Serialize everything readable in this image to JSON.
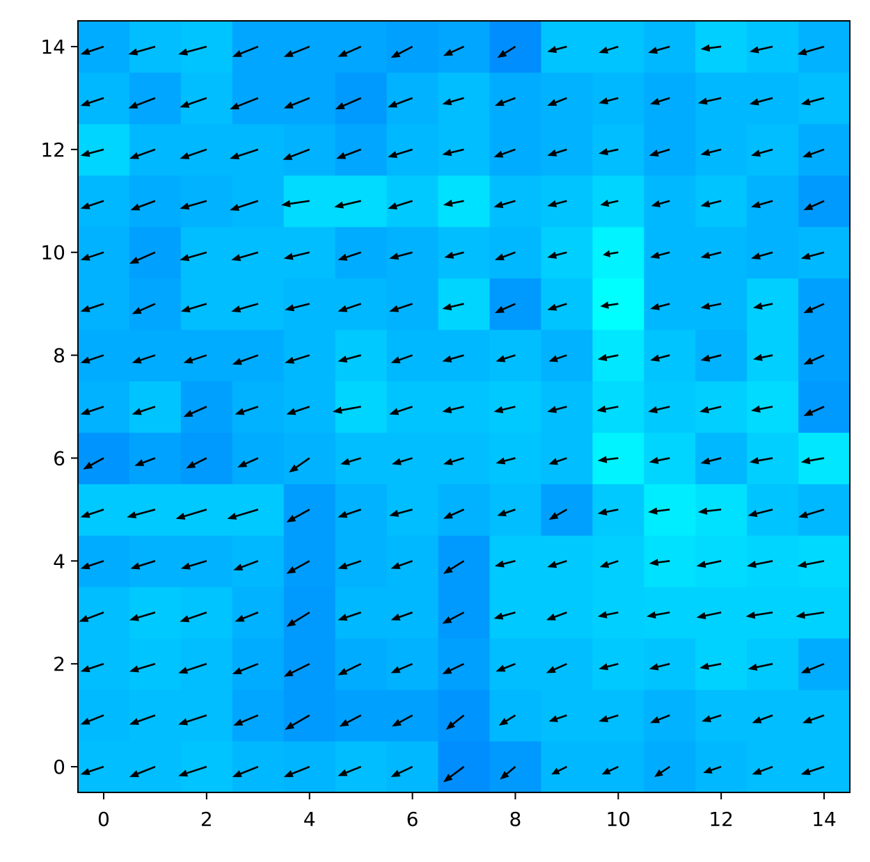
{
  "chart_data": {
    "type": "heatmap",
    "title": "",
    "xlabel": "",
    "ylabel": "",
    "xlim": [
      -0.5,
      14.5
    ],
    "ylim": [
      -0.5,
      14.5
    ],
    "grid": false,
    "origin": "lower",
    "colormap": {
      "low": "#0088ff",
      "high": "#00ffff"
    },
    "x_ticks": [
      {
        "value": 0,
        "label": "0"
      },
      {
        "value": 2,
        "label": "2"
      },
      {
        "value": 4,
        "label": "4"
      },
      {
        "value": 6,
        "label": "6"
      },
      {
        "value": 8,
        "label": "8"
      },
      {
        "value": 10,
        "label": "10"
      },
      {
        "value": 12,
        "label": "12"
      },
      {
        "value": 14,
        "label": "14"
      }
    ],
    "y_ticks": [
      {
        "value": 0,
        "label": "0"
      },
      {
        "value": 2,
        "label": "2"
      },
      {
        "value": 4,
        "label": "4"
      },
      {
        "value": 6,
        "label": "6"
      },
      {
        "value": 8,
        "label": "8"
      },
      {
        "value": 10,
        "label": "10"
      },
      {
        "value": 12,
        "label": "12"
      },
      {
        "value": 14,
        "label": "14"
      }
    ],
    "heatmap_rows_bottom_to_top": [
      [
        0.45,
        0.45,
        0.5,
        0.4,
        0.38,
        0.45,
        0.4,
        0.05,
        0.15,
        0.4,
        0.4,
        0.3,
        0.4,
        0.45,
        0.45
      ],
      [
        0.42,
        0.45,
        0.45,
        0.25,
        0.15,
        0.2,
        0.2,
        0.1,
        0.4,
        0.45,
        0.45,
        0.35,
        0.45,
        0.45,
        0.45
      ],
      [
        0.45,
        0.5,
        0.45,
        0.3,
        0.15,
        0.3,
        0.35,
        0.2,
        0.45,
        0.45,
        0.55,
        0.5,
        0.62,
        0.55,
        0.3
      ],
      [
        0.45,
        0.55,
        0.5,
        0.35,
        0.15,
        0.4,
        0.4,
        0.15,
        0.55,
        0.55,
        0.6,
        0.62,
        0.62,
        0.62,
        0.62
      ],
      [
        0.3,
        0.35,
        0.35,
        0.4,
        0.18,
        0.35,
        0.4,
        0.15,
        0.55,
        0.55,
        0.6,
        0.75,
        0.7,
        0.65,
        0.68
      ],
      [
        0.55,
        0.55,
        0.55,
        0.55,
        0.18,
        0.35,
        0.45,
        0.35,
        0.45,
        0.2,
        0.55,
        0.85,
        0.75,
        0.5,
        0.4
      ],
      [
        0.1,
        0.22,
        0.15,
        0.3,
        0.35,
        0.45,
        0.45,
        0.45,
        0.5,
        0.45,
        0.9,
        0.65,
        0.4,
        0.6,
        0.8
      ],
      [
        0.35,
        0.5,
        0.2,
        0.35,
        0.4,
        0.65,
        0.5,
        0.5,
        0.55,
        0.45,
        0.7,
        0.55,
        0.6,
        0.7,
        0.15
      ],
      [
        0.3,
        0.3,
        0.3,
        0.3,
        0.4,
        0.55,
        0.4,
        0.4,
        0.45,
        0.35,
        0.8,
        0.5,
        0.35,
        0.6,
        0.2
      ],
      [
        0.35,
        0.25,
        0.45,
        0.45,
        0.4,
        0.4,
        0.35,
        0.65,
        0.15,
        0.5,
        1.0,
        0.4,
        0.4,
        0.6,
        0.2
      ],
      [
        0.35,
        0.2,
        0.45,
        0.45,
        0.45,
        0.3,
        0.35,
        0.45,
        0.4,
        0.6,
        0.9,
        0.4,
        0.4,
        0.35,
        0.4
      ],
      [
        0.4,
        0.3,
        0.35,
        0.4,
        0.7,
        0.7,
        0.55,
        0.75,
        0.45,
        0.5,
        0.65,
        0.4,
        0.5,
        0.35,
        0.15
      ],
      [
        0.65,
        0.4,
        0.4,
        0.4,
        0.35,
        0.25,
        0.4,
        0.45,
        0.3,
        0.35,
        0.45,
        0.3,
        0.4,
        0.45,
        0.3
      ],
      [
        0.4,
        0.25,
        0.45,
        0.25,
        0.25,
        0.15,
        0.35,
        0.45,
        0.3,
        0.35,
        0.4,
        0.3,
        0.4,
        0.4,
        0.45
      ],
      [
        0.3,
        0.45,
        0.5,
        0.25,
        0.25,
        0.25,
        0.2,
        0.25,
        0.05,
        0.5,
        0.5,
        0.4,
        0.6,
        0.5,
        0.35
      ]
    ],
    "quiver_u_bottom_to_top": [
      [
        -0.45,
        -0.5,
        -0.55,
        -0.5,
        -0.5,
        -0.45,
        -0.42,
        -0.4,
        -0.3,
        -0.3,
        -0.32,
        -0.3,
        -0.35,
        -0.4,
        -0.45
      ],
      [
        -0.45,
        -0.5,
        -0.55,
        -0.48,
        -0.48,
        -0.42,
        -0.4,
        -0.35,
        -0.32,
        -0.35,
        -0.38,
        -0.38,
        -0.38,
        -0.4,
        -0.42
      ],
      [
        -0.45,
        -0.5,
        -0.55,
        -0.5,
        -0.5,
        -0.45,
        -0.42,
        -0.42,
        -0.38,
        -0.4,
        -0.38,
        -0.4,
        -0.42,
        -0.48,
        -0.45
      ],
      [
        -0.48,
        -0.5,
        -0.52,
        -0.45,
        -0.45,
        -0.45,
        -0.42,
        -0.42,
        -0.42,
        -0.4,
        -0.4,
        -0.45,
        -0.48,
        -0.52,
        -0.55
      ],
      [
        -0.45,
        -0.48,
        -0.5,
        -0.48,
        -0.45,
        -0.45,
        -0.42,
        -0.4,
        -0.4,
        -0.38,
        -0.36,
        -0.4,
        -0.48,
        -0.5,
        -0.52
      ],
      [
        -0.45,
        -0.55,
        -0.6,
        -0.6,
        -0.45,
        -0.45,
        -0.45,
        -0.4,
        -0.35,
        -0.35,
        -0.4,
        -0.42,
        -0.45,
        -0.48,
        -0.5
      ],
      [
        -0.4,
        -0.4,
        -0.4,
        -0.4,
        -0.4,
        -0.4,
        -0.4,
        -0.4,
        -0.38,
        -0.35,
        -0.4,
        -0.4,
        -0.4,
        -0.45,
        -0.45
      ],
      [
        -0.45,
        -0.45,
        -0.45,
        -0.45,
        -0.45,
        -0.55,
        -0.45,
        -0.42,
        -0.42,
        -0.38,
        -0.42,
        -0.42,
        -0.42,
        -0.42,
        -0.4
      ],
      [
        -0.45,
        -0.45,
        -0.45,
        -0.5,
        -0.48,
        -0.45,
        -0.42,
        -0.42,
        -0.38,
        -0.35,
        -0.4,
        -0.38,
        -0.4,
        -0.38,
        -0.4
      ],
      [
        -0.45,
        -0.45,
        -0.5,
        -0.52,
        -0.48,
        -0.45,
        -0.45,
        -0.42,
        -0.4,
        -0.38,
        -0.35,
        -0.38,
        -0.4,
        -0.38,
        -0.4
      ],
      [
        -0.45,
        -0.5,
        -0.52,
        -0.52,
        -0.5,
        -0.45,
        -0.45,
        -0.38,
        -0.4,
        -0.38,
        -0.3,
        -0.38,
        -0.4,
        -0.42,
        -0.45
      ],
      [
        -0.45,
        -0.48,
        -0.52,
        -0.55,
        -0.55,
        -0.52,
        -0.48,
        -0.4,
        -0.42,
        -0.38,
        -0.35,
        -0.36,
        -0.4,
        -0.42,
        -0.4
      ],
      [
        -0.45,
        -0.5,
        -0.52,
        -0.55,
        -0.52,
        -0.48,
        -0.48,
        -0.42,
        -0.42,
        -0.38,
        -0.38,
        -0.4,
        -0.4,
        -0.42,
        -0.42
      ],
      [
        -0.45,
        -0.52,
        -0.52,
        -0.55,
        -0.5,
        -0.5,
        -0.48,
        -0.42,
        -0.4,
        -0.38,
        -0.38,
        -0.38,
        -0.45,
        -0.45,
        -0.45
      ],
      [
        -0.45,
        -0.52,
        -0.55,
        -0.5,
        -0.5,
        -0.45,
        -0.42,
        -0.4,
        -0.35,
        -0.38,
        -0.38,
        -0.42,
        -0.4,
        -0.45,
        -0.52
      ]
    ],
    "quiver_v_bottom_to_top": [
      [
        -0.15,
        -0.2,
        -0.18,
        -0.2,
        -0.2,
        -0.18,
        -0.2,
        -0.3,
        -0.25,
        -0.15,
        -0.15,
        -0.2,
        -0.12,
        -0.15,
        -0.15
      ],
      [
        -0.18,
        -0.18,
        -0.18,
        -0.2,
        -0.28,
        -0.22,
        -0.22,
        -0.28,
        -0.2,
        -0.12,
        -0.12,
        -0.15,
        -0.12,
        -0.15,
        -0.15
      ],
      [
        -0.15,
        -0.15,
        -0.18,
        -0.2,
        -0.25,
        -0.22,
        -0.18,
        -0.2,
        -0.15,
        -0.18,
        -0.1,
        -0.1,
        -0.08,
        -0.1,
        -0.18
      ],
      [
        -0.18,
        -0.15,
        -0.18,
        -0.18,
        -0.28,
        -0.15,
        -0.15,
        -0.22,
        -0.12,
        -0.15,
        -0.08,
        -0.08,
        -0.1,
        -0.08,
        -0.08
      ],
      [
        -0.15,
        -0.15,
        -0.15,
        -0.18,
        -0.25,
        -0.15,
        -0.15,
        -0.25,
        -0.1,
        -0.12,
        -0.12,
        -0.05,
        -0.1,
        -0.1,
        -0.1
      ],
      [
        -0.15,
        -0.15,
        -0.18,
        -0.18,
        -0.25,
        -0.15,
        -0.12,
        -0.18,
        -0.12,
        -0.2,
        -0.08,
        -0.05,
        -0.05,
        -0.12,
        -0.15
      ],
      [
        -0.22,
        -0.15,
        -0.2,
        -0.18,
        -0.28,
        -0.12,
        -0.12,
        -0.12,
        -0.1,
        -0.12,
        -0.05,
        -0.08,
        -0.1,
        -0.08,
        -0.08
      ],
      [
        -0.15,
        -0.15,
        -0.2,
        -0.15,
        -0.15,
        -0.1,
        -0.15,
        -0.1,
        -0.1,
        -0.1,
        -0.08,
        -0.1,
        -0.1,
        -0.08,
        -0.18
      ],
      [
        -0.15,
        -0.15,
        -0.15,
        -0.18,
        -0.15,
        -0.12,
        -0.15,
        -0.12,
        -0.12,
        -0.12,
        -0.08,
        -0.1,
        -0.1,
        -0.08,
        -0.18
      ],
      [
        -0.15,
        -0.2,
        -0.15,
        -0.15,
        -0.12,
        -0.15,
        -0.15,
        -0.1,
        -0.18,
        -0.12,
        -0.05,
        -0.1,
        -0.08,
        -0.08,
        -0.18
      ],
      [
        -0.15,
        -0.22,
        -0.15,
        -0.15,
        -0.12,
        -0.15,
        -0.12,
        -0.1,
        -0.15,
        -0.1,
        -0.05,
        -0.1,
        -0.1,
        -0.12,
        -0.12
      ],
      [
        -0.15,
        -0.18,
        -0.15,
        -0.18,
        -0.08,
        -0.12,
        -0.15,
        -0.08,
        -0.12,
        -0.1,
        -0.08,
        -0.1,
        -0.1,
        -0.12,
        -0.18
      ],
      [
        -0.12,
        -0.18,
        -0.18,
        -0.18,
        -0.2,
        -0.18,
        -0.15,
        -0.1,
        -0.15,
        -0.12,
        -0.08,
        -0.12,
        -0.1,
        -0.12,
        -0.15
      ],
      [
        -0.15,
        -0.2,
        -0.18,
        -0.22,
        -0.2,
        -0.22,
        -0.18,
        -0.12,
        -0.15,
        -0.15,
        -0.1,
        -0.12,
        -0.1,
        -0.12,
        -0.12
      ],
      [
        -0.15,
        -0.15,
        -0.15,
        -0.2,
        -0.2,
        -0.2,
        -0.22,
        -0.18,
        -0.22,
        -0.1,
        -0.12,
        -0.12,
        -0.05,
        -0.1,
        -0.15
      ]
    ]
  }
}
